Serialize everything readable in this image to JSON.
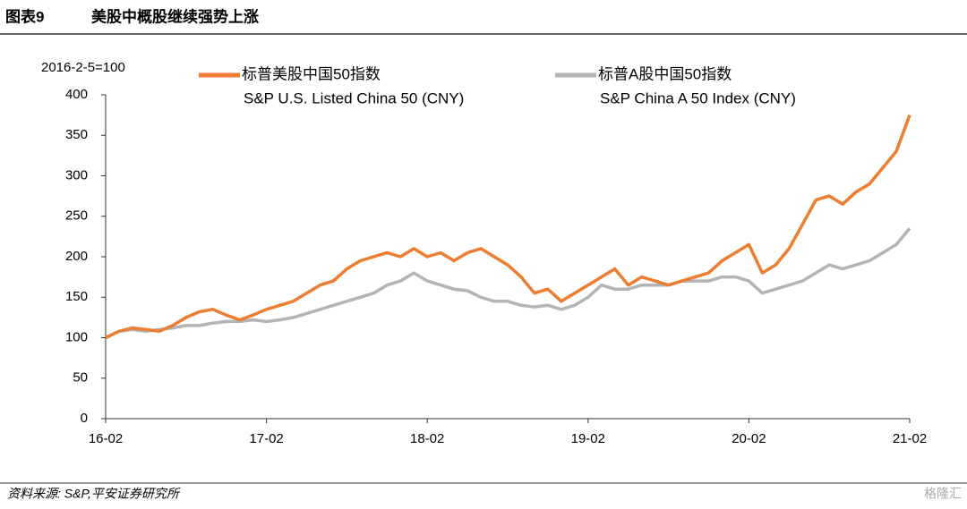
{
  "header": {
    "label": "图表9",
    "title": "美股中概股继续强势上涨"
  },
  "chart_data": {
    "type": "line",
    "y_axis_label": "2016-2-5=100",
    "x": [
      "16-02",
      "16-03",
      "16-04",
      "16-05",
      "16-06",
      "16-07",
      "16-08",
      "16-09",
      "16-10",
      "16-11",
      "16-12",
      "17-01",
      "17-02",
      "17-03",
      "17-04",
      "17-05",
      "17-06",
      "17-07",
      "17-08",
      "17-09",
      "17-10",
      "17-11",
      "17-12",
      "18-01",
      "18-02",
      "18-03",
      "18-04",
      "18-05",
      "18-06",
      "18-07",
      "18-08",
      "18-09",
      "18-10",
      "18-11",
      "18-12",
      "19-01",
      "19-02",
      "19-03",
      "19-04",
      "19-05",
      "19-06",
      "19-07",
      "19-08",
      "19-09",
      "19-10",
      "19-11",
      "19-12",
      "20-01",
      "20-02",
      "20-03",
      "20-04",
      "20-05",
      "20-06",
      "20-07",
      "20-08",
      "20-09",
      "20-10",
      "20-11",
      "20-12",
      "21-01",
      "21-02"
    ],
    "xticks": [
      "16-02",
      "17-02",
      "18-02",
      "19-02",
      "20-02",
      "21-02"
    ],
    "series": [
      {
        "name": "标普美股中国50指数",
        "name_en": "S&P U.S. Listed China 50 (CNY)",
        "color": "#ed7d31",
        "values": [
          100,
          108,
          112,
          110,
          108,
          115,
          125,
          132,
          135,
          128,
          122,
          128,
          135,
          140,
          145,
          155,
          165,
          170,
          185,
          195,
          200,
          205,
          200,
          210,
          200,
          205,
          195,
          205,
          210,
          200,
          190,
          175,
          155,
          160,
          145,
          155,
          165,
          175,
          185,
          165,
          175,
          170,
          165,
          170,
          175,
          180,
          195,
          205,
          215,
          180,
          190,
          210,
          240,
          270,
          275,
          265,
          280,
          290,
          310,
          330,
          375
        ]
      },
      {
        "name": "标普A股中国50指数",
        "name_en": "S&P China A 50 Index (CNY)",
        "color": "#b4b4b4",
        "values": [
          100,
          108,
          110,
          108,
          110,
          112,
          115,
          115,
          118,
          120,
          120,
          122,
          120,
          122,
          125,
          130,
          135,
          140,
          145,
          150,
          155,
          165,
          170,
          180,
          170,
          165,
          160,
          158,
          150,
          145,
          145,
          140,
          138,
          140,
          135,
          140,
          150,
          165,
          160,
          160,
          165,
          165,
          165,
          170,
          170,
          170,
          175,
          175,
          170,
          155,
          160,
          165,
          170,
          180,
          190,
          185,
          190,
          195,
          205,
          215,
          235
        ]
      }
    ],
    "ylim": [
      0,
      400
    ],
    "yticks": [
      0,
      50,
      100,
      150,
      200,
      250,
      300,
      350,
      400
    ],
    "grid": false
  },
  "footer": {
    "source": "资料来源: S&P,平安证券研究所",
    "watermark": "格隆汇"
  }
}
